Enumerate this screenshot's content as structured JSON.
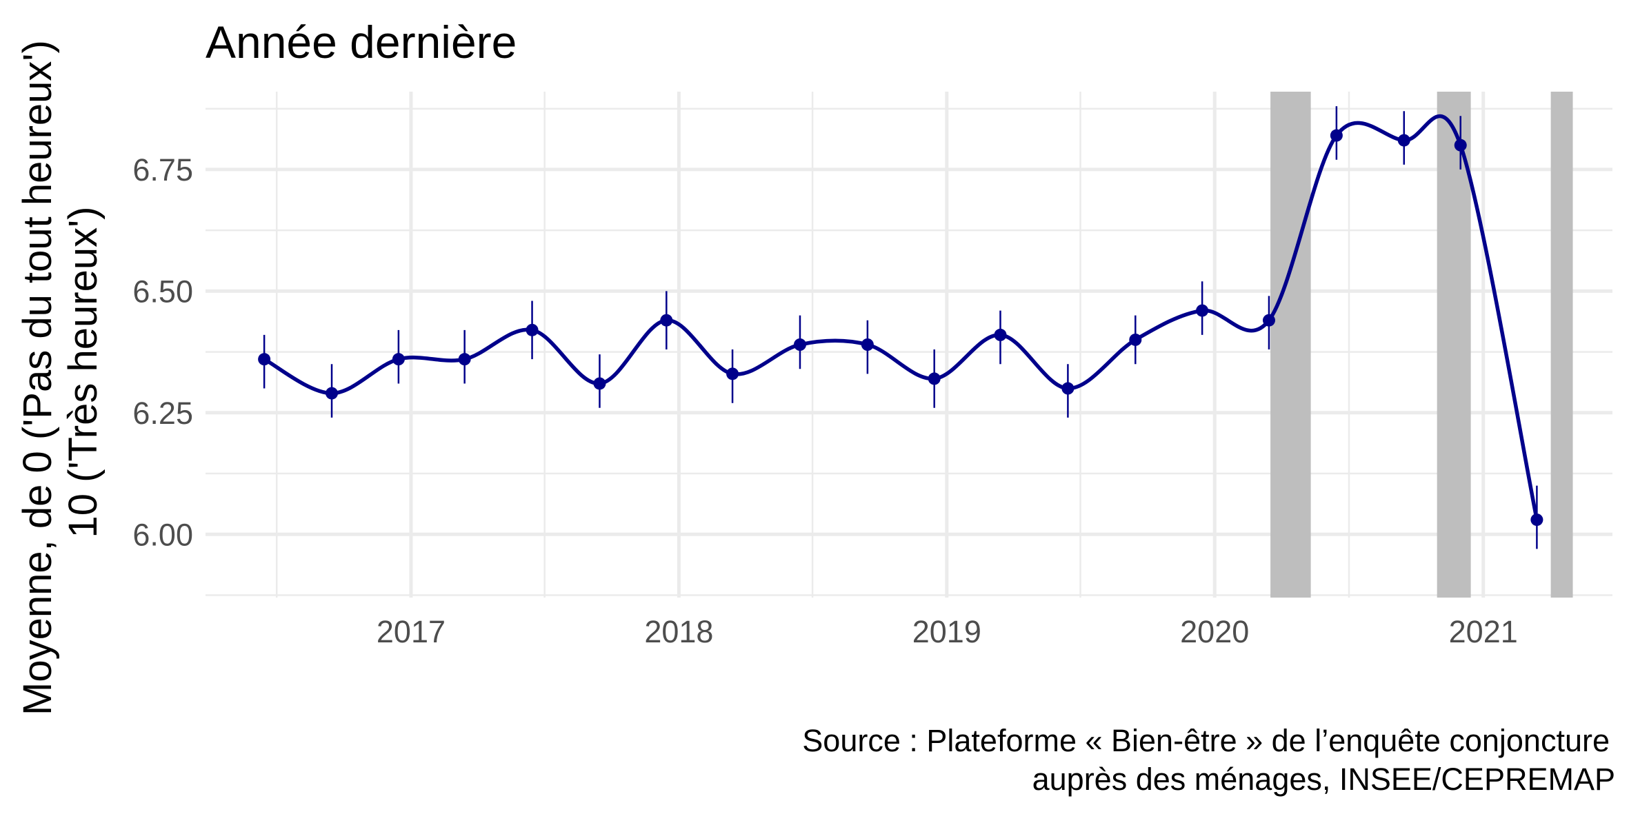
{
  "chart_data": {
    "type": "line",
    "title": "Année dernière",
    "xlabel": "",
    "ylabel_lines": [
      "Moyenne, de 0 ('Pas du tout heureux')",
      "10 ('Très heureux')"
    ],
    "caption_lines": [
      "Source : Plateforme « Bien-être » de l’enquête conjoncture",
      "auprès des ménages, INSEE/CEPREMAP"
    ],
    "x_ticks": [
      "2017",
      "2018",
      "2019",
      "2020",
      "2021"
    ],
    "y_ticks": [
      "6.00",
      "6.25",
      "6.50",
      "6.75"
    ],
    "xlim": [
      "2016-03-27",
      "2021-06-26"
    ],
    "ylim": [
      5.87,
      6.91
    ],
    "grid": true,
    "line_color": "#00008b",
    "band_color": "#bebebe",
    "shaded_periods": [
      [
        "2020-03-17",
        "2020-05-11"
      ],
      [
        "2020-10-30",
        "2020-12-15"
      ],
      [
        "2021-04-03",
        "2021-05-03"
      ]
    ],
    "points": [
      {
        "date": "2016-06-15",
        "mean": 6.36,
        "lo": 6.3,
        "hi": 6.41
      },
      {
        "date": "2016-09-15",
        "mean": 6.29,
        "lo": 6.24,
        "hi": 6.35
      },
      {
        "date": "2016-12-15",
        "mean": 6.36,
        "lo": 6.31,
        "hi": 6.42
      },
      {
        "date": "2017-03-15",
        "mean": 6.36,
        "lo": 6.31,
        "hi": 6.42
      },
      {
        "date": "2017-06-15",
        "mean": 6.42,
        "lo": 6.36,
        "hi": 6.48
      },
      {
        "date": "2017-09-15",
        "mean": 6.31,
        "lo": 6.26,
        "hi": 6.37
      },
      {
        "date": "2017-12-15",
        "mean": 6.44,
        "lo": 6.38,
        "hi": 6.5
      },
      {
        "date": "2018-03-15",
        "mean": 6.33,
        "lo": 6.27,
        "hi": 6.38
      },
      {
        "date": "2018-06-15",
        "mean": 6.39,
        "lo": 6.34,
        "hi": 6.45
      },
      {
        "date": "2018-09-15",
        "mean": 6.39,
        "lo": 6.33,
        "hi": 6.44
      },
      {
        "date": "2018-12-15",
        "mean": 6.32,
        "lo": 6.26,
        "hi": 6.38
      },
      {
        "date": "2019-03-15",
        "mean": 6.41,
        "lo": 6.35,
        "hi": 6.46
      },
      {
        "date": "2019-06-15",
        "mean": 6.3,
        "lo": 6.24,
        "hi": 6.35
      },
      {
        "date": "2019-09-15",
        "mean": 6.4,
        "lo": 6.35,
        "hi": 6.45
      },
      {
        "date": "2019-12-15",
        "mean": 6.46,
        "lo": 6.41,
        "hi": 6.52
      },
      {
        "date": "2020-03-15",
        "mean": 6.44,
        "lo": 6.38,
        "hi": 6.49
      },
      {
        "date": "2020-06-15",
        "mean": 6.82,
        "lo": 6.77,
        "hi": 6.88
      },
      {
        "date": "2020-09-15",
        "mean": 6.81,
        "lo": 6.76,
        "hi": 6.87
      },
      {
        "date": "2020-12-01",
        "mean": 6.8,
        "lo": 6.75,
        "hi": 6.86
      },
      {
        "date": "2021-03-15",
        "mean": 6.03,
        "lo": 5.97,
        "hi": 6.1
      }
    ]
  }
}
